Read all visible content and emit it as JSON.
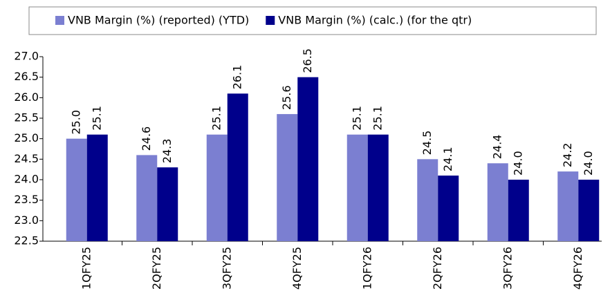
{
  "chart_data": {
    "type": "bar",
    "categories": [
      "1QFY25",
      "2QFY25",
      "3QFY25",
      "4QFY25",
      "1QFY26",
      "2QFY26",
      "3QFY26",
      "4QFY26"
    ],
    "series": [
      {
        "name": "VNB Margin (%) (reported) (YTD)",
        "color": "#7b7fd1",
        "values": [
          25.0,
          24.6,
          25.1,
          25.6,
          25.1,
          24.5,
          24.4,
          24.2
        ],
        "value_labels": [
          "25.0",
          "24.6",
          "25.1",
          "25.6",
          "25.1",
          "24.5",
          "24.4",
          "24.2"
        ]
      },
      {
        "name": "VNB Margin (%) (calc.) (for the qtr)",
        "color": "#00008b",
        "values": [
          25.1,
          24.3,
          26.1,
          26.5,
          25.1,
          24.1,
          24.0,
          24.0
        ],
        "value_labels": [
          "25.1",
          "24.3",
          "26.1",
          "26.5",
          "25.1",
          "24.1",
          "24.0",
          "24.0"
        ]
      }
    ],
    "ylim": [
      22.5,
      27.0
    ],
    "yticks": [
      22.5,
      {
        "value": 23,
        "label": "23.0"
      },
      23.5,
      {
        "value": 24,
        "label": "24.0"
      },
      24.5,
      {
        "value": 25,
        "label": "25.0"
      },
      25.5,
      {
        "value": 26,
        "label": "26.0"
      },
      26.5,
      {
        "value": 27,
        "label": "27.0"
      }
    ],
    "grid": false,
    "legend": "top"
  }
}
